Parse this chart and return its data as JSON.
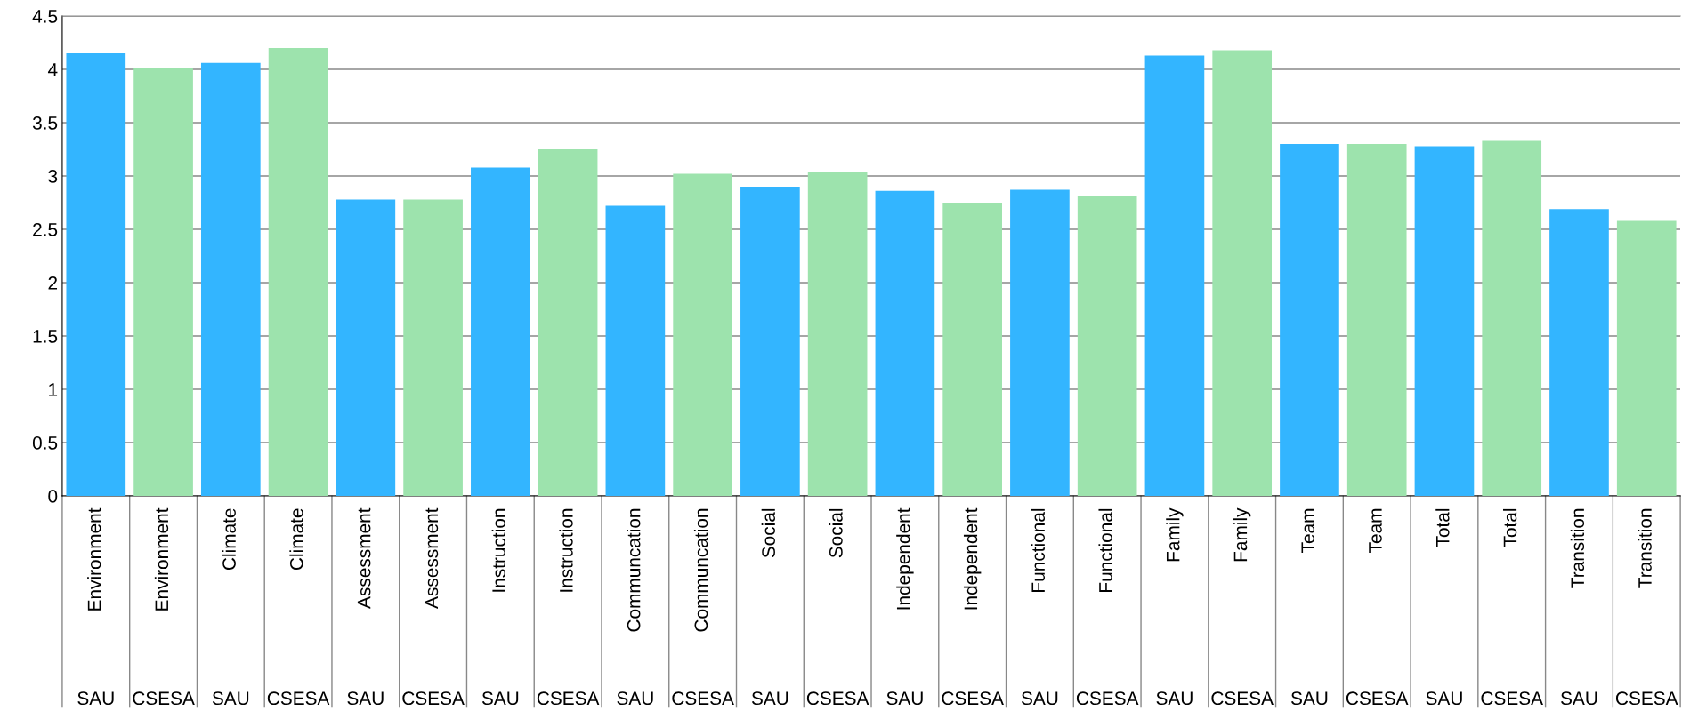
{
  "chart_data": {
    "type": "bar",
    "categories": [
      "Environment",
      "Environment",
      "Climate",
      "Climate",
      "Assessment",
      "Assessment",
      "Instruction",
      "Instruction",
      "Communcation",
      "Communcation",
      "Social",
      "Social",
      "Independent",
      "Independent",
      "Functional",
      "Functional",
      "Family",
      "Family",
      "Team",
      "Team",
      "Total",
      "Total",
      "Transition",
      "Transition"
    ],
    "series": [
      {
        "name": "SAU",
        "color": "#33b5ff",
        "values": [
          4.15,
          null,
          4.06,
          null,
          2.78,
          null,
          3.08,
          null,
          2.72,
          null,
          2.9,
          null,
          2.86,
          null,
          2.87,
          null,
          4.13,
          null,
          3.3,
          null,
          3.28,
          null,
          2.69,
          null
        ]
      },
      {
        "name": "CSESA",
        "color": "#9de3ad",
        "values": [
          null,
          4.01,
          null,
          4.2,
          null,
          2.78,
          null,
          3.25,
          null,
          3.02,
          null,
          3.04,
          null,
          2.75,
          null,
          2.81,
          null,
          4.18,
          null,
          3.3,
          null,
          3.33,
          null,
          2.58
        ]
      }
    ],
    "ylim": [
      0,
      4.5
    ],
    "yticks": [
      0,
      0.5,
      1,
      1.5,
      2,
      2.5,
      3,
      3.5,
      4,
      4.5
    ],
    "grid": "y",
    "legend": false
  }
}
